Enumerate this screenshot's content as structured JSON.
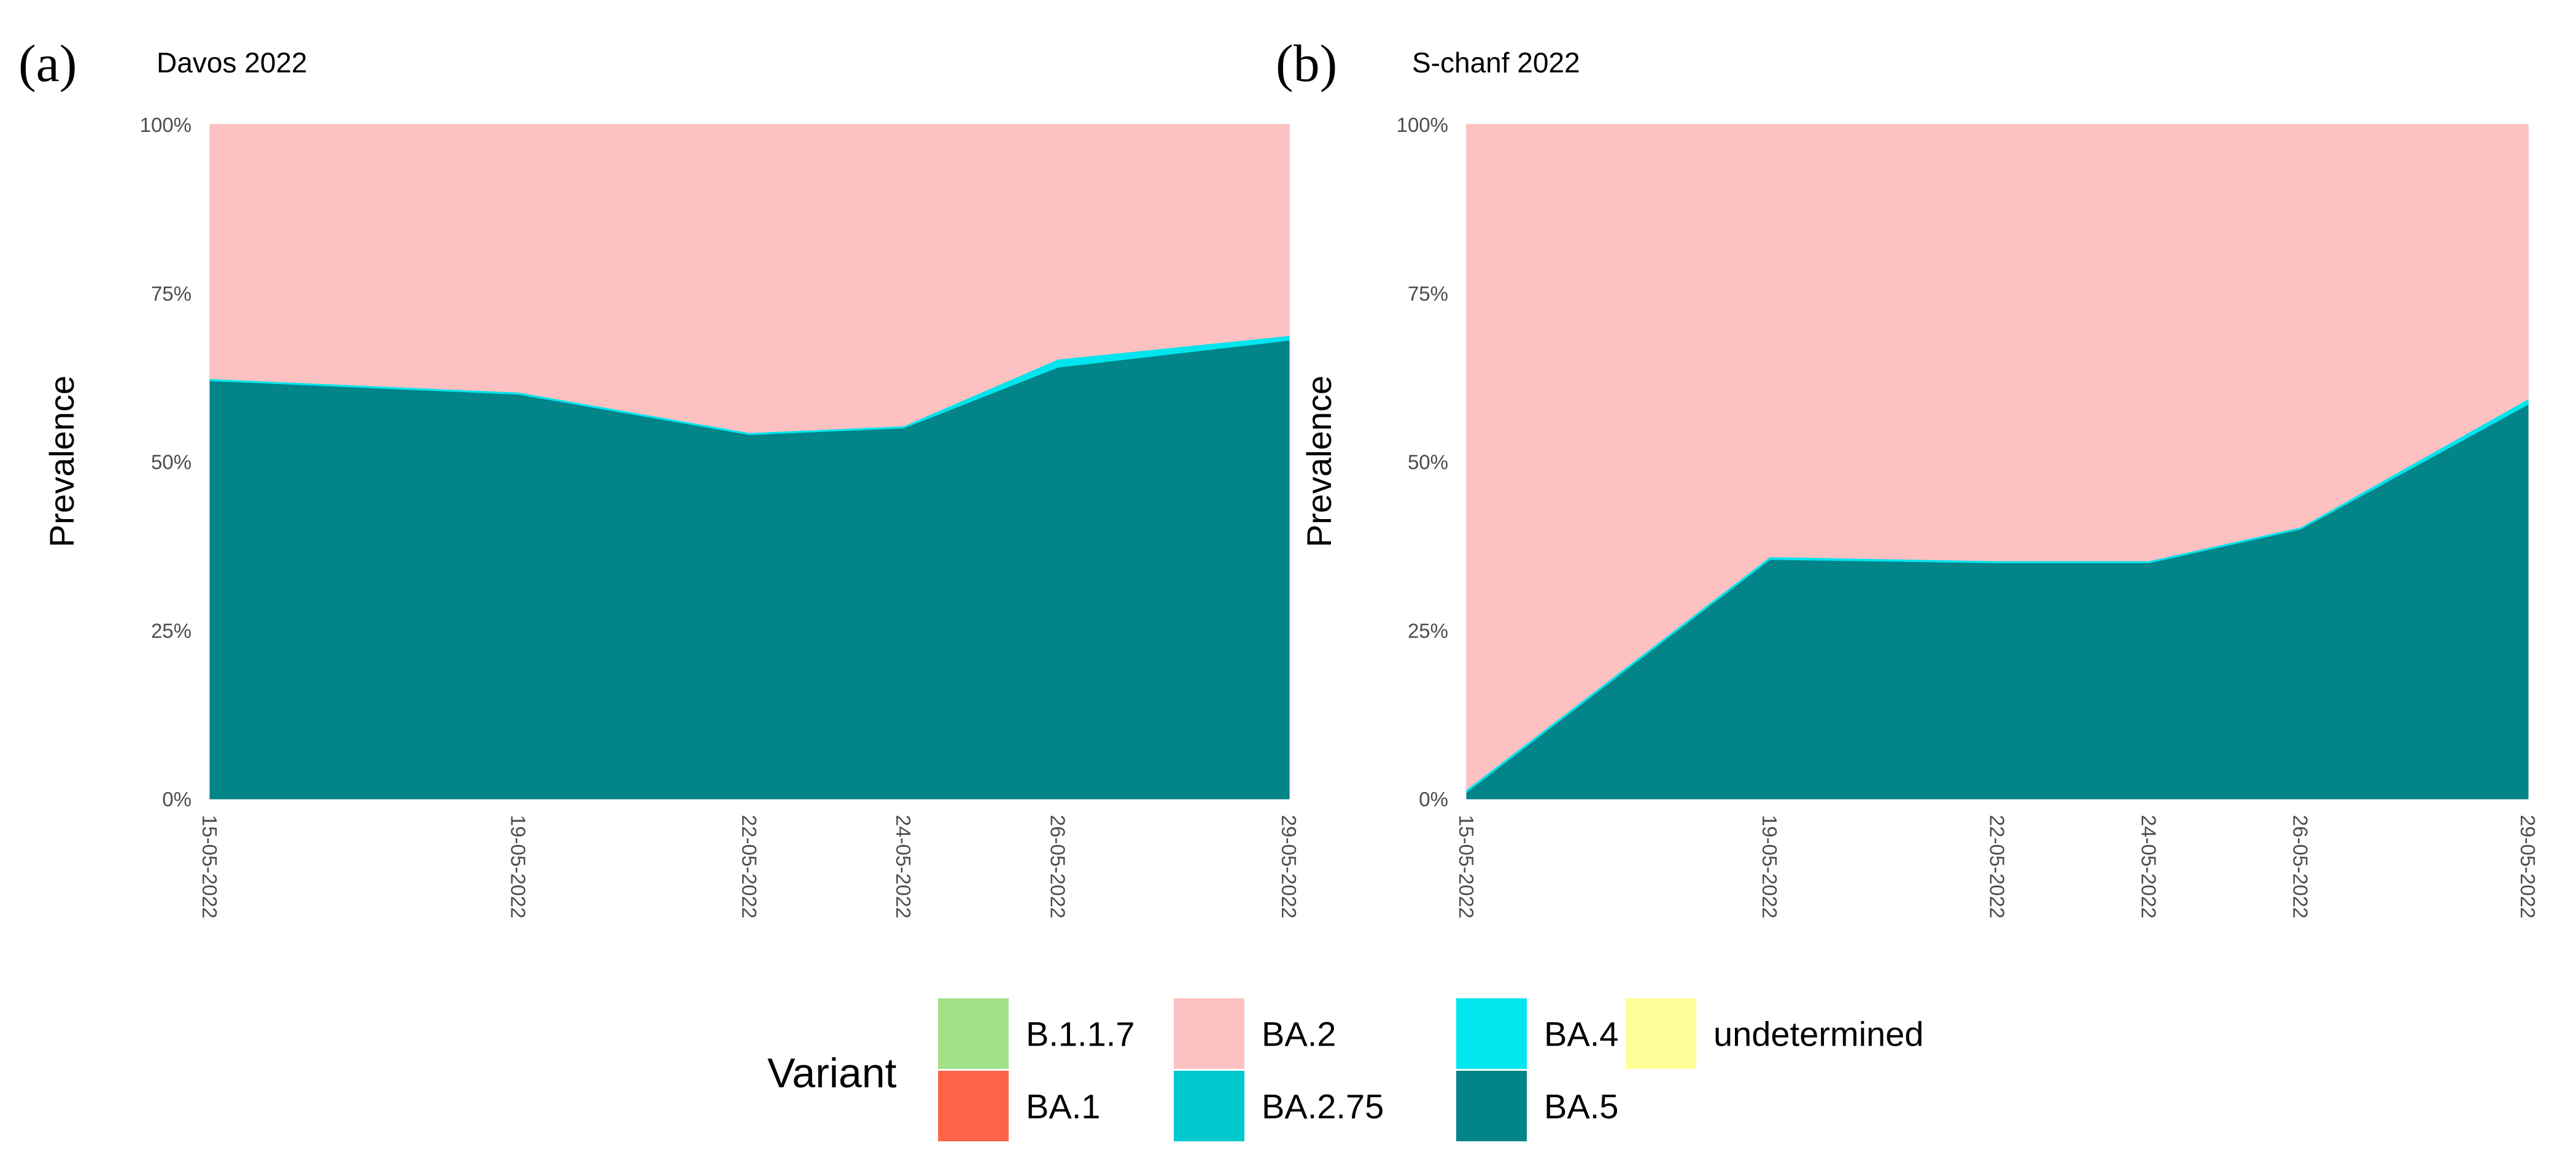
{
  "chart_data": [
    {
      "type": "area",
      "panel_tag": "(a)",
      "title": "Davos 2022",
      "ylabel": "Prevalence",
      "xlabel": "",
      "ylim": [
        0,
        1
      ],
      "stacked": "fill",
      "ytick_labels": [
        "0%",
        "25%",
        "50%",
        "75%",
        "100%"
      ],
      "x_days": [
        0,
        4,
        7,
        9,
        11,
        14
      ],
      "x_labels": [
        "15-05-2022",
        "19-05-2022",
        "22-05-2022",
        "24-05-2022",
        "26-05-2022",
        "29-05-2022"
      ],
      "series": [
        {
          "name": "BA.5",
          "values": [
            0.62,
            0.6,
            0.54,
            0.55,
            0.64,
            0.68
          ]
        },
        {
          "name": "BA.4",
          "values": [
            0.003,
            0.003,
            0.003,
            0.003,
            0.012,
            0.007
          ]
        },
        {
          "name": "BA.2.75",
          "values": [
            0.0,
            0.0,
            0.0,
            0.0,
            0.0,
            0.0
          ]
        },
        {
          "name": "BA.2",
          "values": [
            0.377,
            0.397,
            0.457,
            0.447,
            0.348,
            0.313
          ]
        },
        {
          "name": "BA.1",
          "values": [
            0.0,
            0.0,
            0.0,
            0.0,
            0.0,
            0.0
          ]
        },
        {
          "name": "B.1.1.7",
          "values": [
            0.0,
            0.0,
            0.0,
            0.0,
            0.0,
            0.0
          ]
        },
        {
          "name": "undetermined",
          "values": [
            0.0,
            0.0,
            0.0,
            0.0,
            0.0,
            0.0
          ]
        }
      ]
    },
    {
      "type": "area",
      "panel_tag": "(b)",
      "title": "S-chanf 2022",
      "ylabel": "Prevalence",
      "xlabel": "",
      "ylim": [
        0,
        1
      ],
      "stacked": "fill",
      "ytick_labels": [
        "0%",
        "25%",
        "50%",
        "75%",
        "100%"
      ],
      "x_days": [
        0,
        4,
        7,
        9,
        11,
        14
      ],
      "x_labels": [
        "15-05-2022",
        "19-05-2022",
        "22-05-2022",
        "24-05-2022",
        "26-05-2022",
        "29-05-2022"
      ],
      "series": [
        {
          "name": "BA.5",
          "values": [
            0.01,
            0.355,
            0.35,
            0.35,
            0.4,
            0.585
          ]
        },
        {
          "name": "BA.4",
          "values": [
            0.004,
            0.004,
            0.003,
            0.003,
            0.003,
            0.008
          ]
        },
        {
          "name": "BA.2.75",
          "values": [
            0.0,
            0.0,
            0.0,
            0.0,
            0.0,
            0.0
          ]
        },
        {
          "name": "BA.2",
          "values": [
            0.986,
            0.641,
            0.647,
            0.647,
            0.597,
            0.407
          ]
        },
        {
          "name": "BA.1",
          "values": [
            0.0,
            0.0,
            0.0,
            0.0,
            0.0,
            0.0
          ]
        },
        {
          "name": "B.1.1.7",
          "values": [
            0.0,
            0.0,
            0.0,
            0.0,
            0.0,
            0.0
          ]
        },
        {
          "name": "undetermined",
          "values": [
            0.0,
            0.0,
            0.0,
            0.0,
            0.0,
            0.0
          ]
        }
      ]
    }
  ],
  "legend": {
    "title": "Variant",
    "position": "bottom",
    "items": [
      {
        "name": "B.1.1.7",
        "color": "#A2E08A"
      },
      {
        "name": "BA.1",
        "color": "#FF6347"
      },
      {
        "name": "BA.2",
        "color": "#FDC1C1"
      },
      {
        "name": "BA.2.75",
        "color": "#00C8CE"
      },
      {
        "name": "BA.4",
        "color": "#00E5EE"
      },
      {
        "name": "BA.5",
        "color": "#028488"
      },
      {
        "name": "undetermined",
        "color": "#FFFF99"
      }
    ]
  }
}
